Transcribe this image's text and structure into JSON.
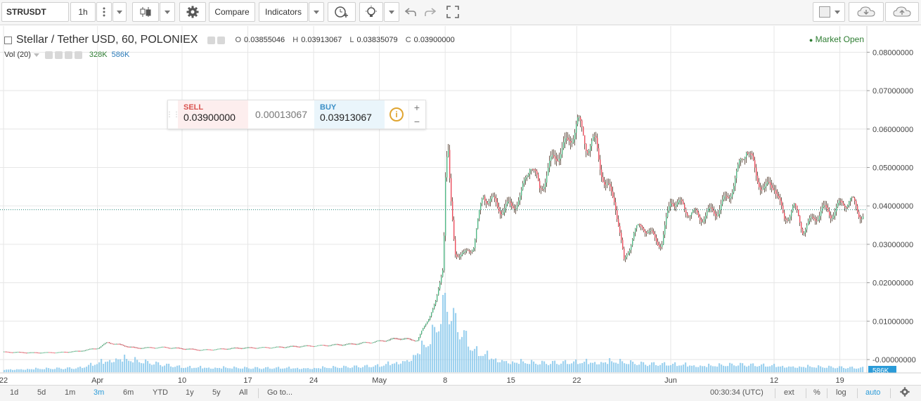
{
  "toolbar": {
    "symbol": "STRUSDT",
    "interval": "1h",
    "compare_label": "Compare",
    "indicators_label": "Indicators",
    "icons": [
      "more-vert-icon",
      "candles-icon",
      "gear-icon",
      "add-alert-icon",
      "lightbulb-icon",
      "undo-icon",
      "redo-icon",
      "fullscreen-icon",
      "cloud-download-icon",
      "cloud-upload-icon"
    ]
  },
  "legend": {
    "title": "Stellar / Tether USD, 60, POLONIEX",
    "o_label": "O",
    "o": "0.03855046",
    "h_label": "H",
    "h": "0.03913067",
    "l_label": "L",
    "l": "0.03835079",
    "c_label": "C",
    "c": "0.03900000",
    "vol_label": "Vol (20)",
    "vol_a": "328K",
    "vol_b": "586K",
    "market_status": "Market Open"
  },
  "trade": {
    "sell_label": "SELL",
    "sell_price": "0.03900000",
    "spread": "0.00013067",
    "buy_label": "BUY",
    "buy_price": "0.03913067",
    "info_symbol": "i"
  },
  "bottom": {
    "ranges": [
      "1d",
      "5d",
      "1m",
      "3m",
      "6m",
      "YTD",
      "1y",
      "5y",
      "All"
    ],
    "active_range": "3m",
    "goto": "Go to...",
    "time": "00:30:34 (UTC)",
    "ext": "ext",
    "percent": "%",
    "log": "log",
    "auto": "auto"
  },
  "colors": {
    "up": "#53b987",
    "down": "#eb4d5c",
    "wick": "#6d5a4e",
    "volume": "#7ec3ea",
    "grid": "#e6e6e6",
    "last_price_line": "#2a8a7d",
    "accent": "#2a9bd8"
  },
  "chart_data": {
    "type": "line",
    "series": [
      {
        "x": [
          "03-22",
          "03-25",
          "03-28",
          "03-30",
          "04-01",
          "04-02",
          "04-03",
          "04-05",
          "04-08",
          "04-12",
          "04-16",
          "04-20",
          "04-24",
          "04-28",
          "05-01",
          "05-03",
          "05-05",
          "05-06",
          "05-07",
          "05-07 18h",
          "05-08",
          "05-08 06h",
          "05-08 12h",
          "05-09",
          "05-10",
          "05-11",
          "05-12",
          "05-13",
          "05-14",
          "05-15",
          "05-16",
          "05-17",
          "05-18",
          "05-19",
          "05-20",
          "05-21",
          "05-22",
          "05-23",
          "05-24",
          "05-25",
          "05-26",
          "05-27",
          "05-28",
          "05-29",
          "05-30",
          "05-31",
          "06-01",
          "06-02",
          "06-04",
          "06-06",
          "06-07",
          "06-08",
          "06-09",
          "06-10",
          "06-11",
          "06-12",
          "06-13",
          "06-14",
          "06-15",
          "06-16",
          "06-17",
          "06-18",
          "06-19",
          "06-20",
          "06-21"
        ],
        "values": [
          0.002,
          0.0018,
          0.0019,
          0.0022,
          0.003,
          0.0045,
          0.004,
          0.003,
          0.0032,
          0.0025,
          0.003,
          0.0032,
          0.0036,
          0.004,
          0.0048,
          0.0055,
          0.005,
          0.01,
          0.015,
          0.025,
          0.05,
          0.055,
          0.042,
          0.028,
          0.027,
          0.03,
          0.043,
          0.041,
          0.039,
          0.04,
          0.042,
          0.052,
          0.044,
          0.05,
          0.054,
          0.056,
          0.062,
          0.056,
          0.056,
          0.045,
          0.042,
          0.025,
          0.033,
          0.035,
          0.032,
          0.03,
          0.042,
          0.04,
          0.037,
          0.039,
          0.042,
          0.048,
          0.056,
          0.048,
          0.044,
          0.046,
          0.036,
          0.04,
          0.034,
          0.036,
          0.039,
          0.038,
          0.04,
          0.042,
          0.038
        ]
      }
    ],
    "volume_x": [
      "03-22",
      "03-30",
      "04-03",
      "04-10",
      "04-17",
      "04-24",
      "05-01",
      "05-04",
      "05-06",
      "05-07",
      "05-08",
      "05-09",
      "05-10",
      "05-11",
      "05-13",
      "05-15",
      "05-18",
      "05-22",
      "05-26",
      "05-29",
      "06-01",
      "06-05",
      "06-08",
      "06-12",
      "06-15",
      "06-19",
      "06-21"
    ],
    "volume": [
      40,
      60,
      200,
      70,
      60,
      60,
      90,
      180,
      400,
      620,
      1000,
      700,
      500,
      300,
      200,
      150,
      130,
      140,
      150,
      120,
      110,
      90,
      110,
      90,
      80,
      70,
      60
    ],
    "ylim": [
      0,
      0.085
    ],
    "y_ticks": [
      "0.08000000",
      "0.07000000",
      "0.06000000",
      "0.05000000",
      "0.04000000",
      "0.03000000",
      "0.02000000",
      "0.01000000",
      "-0.00000000"
    ],
    "y_tick_values": [
      0.08,
      0.07,
      0.06,
      0.05,
      0.04,
      0.03,
      0.02,
      0.01,
      0.0
    ],
    "x_ticks": [
      "22",
      "Apr",
      "10",
      "17",
      "24",
      "May",
      "8",
      "15",
      "22",
      "Jun",
      "12",
      "19"
    ],
    "x_tick_dates": [
      "03-22",
      "04-01",
      "04-10",
      "04-17",
      "04-24",
      "05-01",
      "05-08",
      "05-15",
      "05-22",
      "06-01",
      "06-12",
      "06-19"
    ],
    "last_price": 0.039,
    "volume_badge": "586K",
    "grid": true
  }
}
